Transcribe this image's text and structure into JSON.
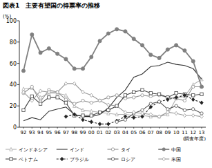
{
  "chart_data": {
    "type": "line",
    "title": "図表1　主要有望国の得票率の推移",
    "y_label": "(%)",
    "x_label": "(調査年度)",
    "categories": [
      "92",
      "93",
      "94",
      "95",
      "96",
      "97",
      "98",
      "99",
      "00",
      "01",
      "02",
      "03",
      "04",
      "05",
      "06",
      "07",
      "08",
      "09",
      "10",
      "11",
      "12",
      "13"
    ],
    "ylim": [
      0,
      100
    ],
    "yticks": [
      0,
      20,
      40,
      60,
      80,
      100
    ],
    "grid": false,
    "legend": "bottom",
    "series": [
      {
        "name": "インドネシア",
        "color": "#b0b0b0",
        "marker": "triangle-open",
        "line_style": "solid",
        "values": [
          36,
          37,
          28,
          32,
          32,
          30,
          20,
          16,
          15,
          14,
          13,
          12,
          12,
          11,
          11,
          10,
          10,
          12,
          27,
          29,
          40,
          45
        ]
      },
      {
        "name": "インド",
        "color": "#333333",
        "marker": "none",
        "line_style": "solid",
        "values": [
          6,
          9,
          7,
          15,
          17,
          19,
          12,
          10,
          10,
          12,
          18,
          28,
          35,
          47,
          50,
          57,
          58,
          61,
          59,
          58,
          55,
          45
        ]
      },
      {
        "name": "タイ",
        "color": "#909090",
        "marker": "circle-open",
        "line_style": "solid",
        "values": [
          32,
          38,
          24,
          35,
          33,
          26,
          22,
          25,
          23,
          25,
          28,
          30,
          27,
          28,
          30,
          29,
          30,
          28,
          27,
          25,
          38,
          38
        ]
      },
      {
        "name": "中国",
        "color": "#808080",
        "marker": "circle",
        "line_style": "solid",
        "values": [
          53,
          87,
          70,
          74,
          69,
          64,
          55,
          55,
          66,
          81,
          88,
          92,
          90,
          83,
          77,
          68,
          65,
          73,
          77,
          72,
          62,
          38
        ]
      },
      {
        "name": "ベトナム",
        "color": "#444444",
        "marker": "square-open",
        "line_style": "solid",
        "values": [
          16,
          29,
          22,
          28,
          28,
          23,
          11,
          11,
          11,
          14,
          16,
          20,
          30,
          33,
          35,
          32,
          31,
          28,
          32,
          31,
          30,
          31
        ]
      },
      {
        "name": "ブラジル",
        "color": "#222222",
        "marker": "diamond",
        "line_style": "dashed",
        "values": [
          null,
          null,
          null,
          null,
          null,
          10,
          12,
          7,
          5,
          3,
          3,
          6,
          10,
          9,
          10,
          19,
          24,
          26,
          28,
          30,
          26,
          23
        ]
      },
      {
        "name": "ロシア",
        "color": "#555555",
        "marker": "circle-open",
        "line_style": "solid",
        "values": [
          null,
          null,
          null,
          null,
          null,
          null,
          null,
          null,
          null,
          null,
          null,
          5,
          7,
          13,
          16,
          22,
          24,
          17,
          20,
          16,
          17,
          13
        ]
      },
      {
        "name": "米国",
        "color": "#9a9a9a",
        "marker": "diamond-open",
        "line_style": "solid",
        "values": [
          33,
          25,
          34,
          33,
          33,
          41,
          41,
          33,
          30,
          25,
          21,
          20,
          14,
          14,
          13,
          12,
          10,
          14,
          13,
          11,
          11,
          10
        ]
      }
    ]
  }
}
